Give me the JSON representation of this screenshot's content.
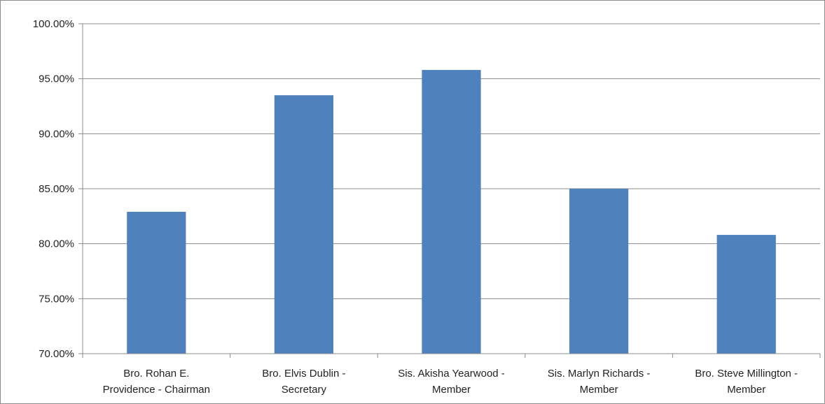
{
  "chart_data": {
    "type": "bar",
    "categories": [
      [
        "Bro. Rohan E.",
        "Providence - Chairman"
      ],
      [
        "Bro. Elvis Dublin -",
        "Secretary"
      ],
      [
        "Sis. Akisha Yearwood -",
        "Member"
      ],
      [
        "Sis. Marlyn Richards -",
        "Member"
      ],
      [
        "Bro. Steve Millington -",
        "Member"
      ]
    ],
    "values": [
      82.9,
      93.5,
      95.8,
      85.0,
      80.8
    ],
    "title": "",
    "xlabel": "",
    "ylabel": "",
    "ylim": [
      70,
      100
    ],
    "yticks": [
      "70.00%",
      "75.00%",
      "80.00%",
      "85.00%",
      "90.00%",
      "95.00%",
      "100.00%"
    ],
    "grid": true,
    "legend": "none",
    "bar_color": "#4f81bd",
    "grid_color": "#8c8c8c"
  }
}
